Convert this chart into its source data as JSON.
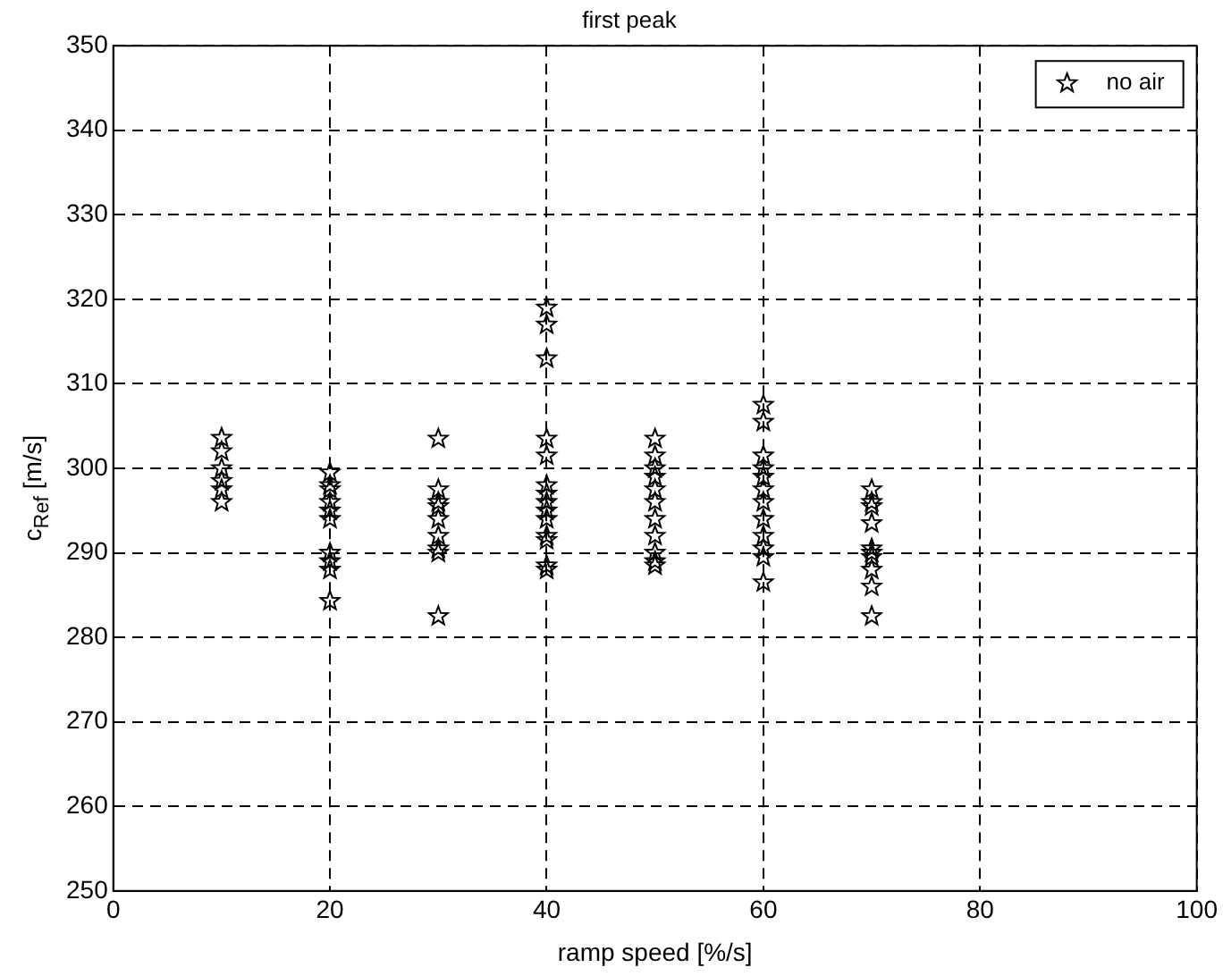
{
  "chart_data": {
    "type": "scatter",
    "title": "first peak",
    "xlabel": "ramp speed [%/s]",
    "ylabel": "c$_{Ref}$ [m/s]",
    "x": [
      10,
      10,
      10,
      10,
      10,
      10,
      20,
      20,
      20,
      20,
      20,
      20,
      20,
      20,
      20,
      20,
      30,
      30,
      30,
      30,
      30,
      30,
      30,
      30,
      30,
      40,
      40,
      40,
      40,
      40,
      40,
      40,
      40,
      40,
      40,
      40,
      40,
      40,
      40,
      50,
      50,
      50,
      50,
      50,
      50,
      50,
      50,
      50,
      50,
      50,
      60,
      60,
      60,
      60,
      60,
      60,
      60,
      60,
      60,
      60,
      60,
      60,
      70,
      70,
      70,
      70,
      70,
      70,
      70,
      70,
      70,
      70
    ],
    "series": [
      {
        "name": "no air",
        "color": "#000000",
        "values": [
          303.6,
          302,
          300,
          298.5,
          297.5,
          296,
          299.5,
          298,
          297.5,
          296,
          295,
          294,
          290,
          289,
          288,
          284.3,
          303.5,
          297.5,
          296,
          295.5,
          294,
          292,
          290.5,
          290,
          282.5,
          319,
          317,
          313,
          303.5,
          301.5,
          298,
          297,
          296,
          295,
          294,
          292,
          291.5,
          288.5,
          288,
          303.5,
          301.5,
          300,
          299,
          297.5,
          296,
          294,
          292,
          290,
          289,
          288.5,
          307.5,
          305.5,
          301.5,
          300,
          299,
          297.5,
          296,
          294,
          292,
          290.5,
          289.5,
          286.5,
          297.5,
          296,
          295.5,
          293.5,
          290.5,
          290,
          289.5,
          288,
          286,
          282.5
        ]
      }
    ],
    "xlim": [
      0,
      100
    ],
    "xticks": [
      0,
      20,
      40,
      60,
      80,
      100
    ],
    "ylim": [
      250,
      350
    ],
    "yticks": [
      250,
      260,
      270,
      280,
      290,
      300,
      310,
      320,
      330,
      340,
      350
    ],
    "grid": true,
    "legend": "top right",
    "marker": "star"
  }
}
